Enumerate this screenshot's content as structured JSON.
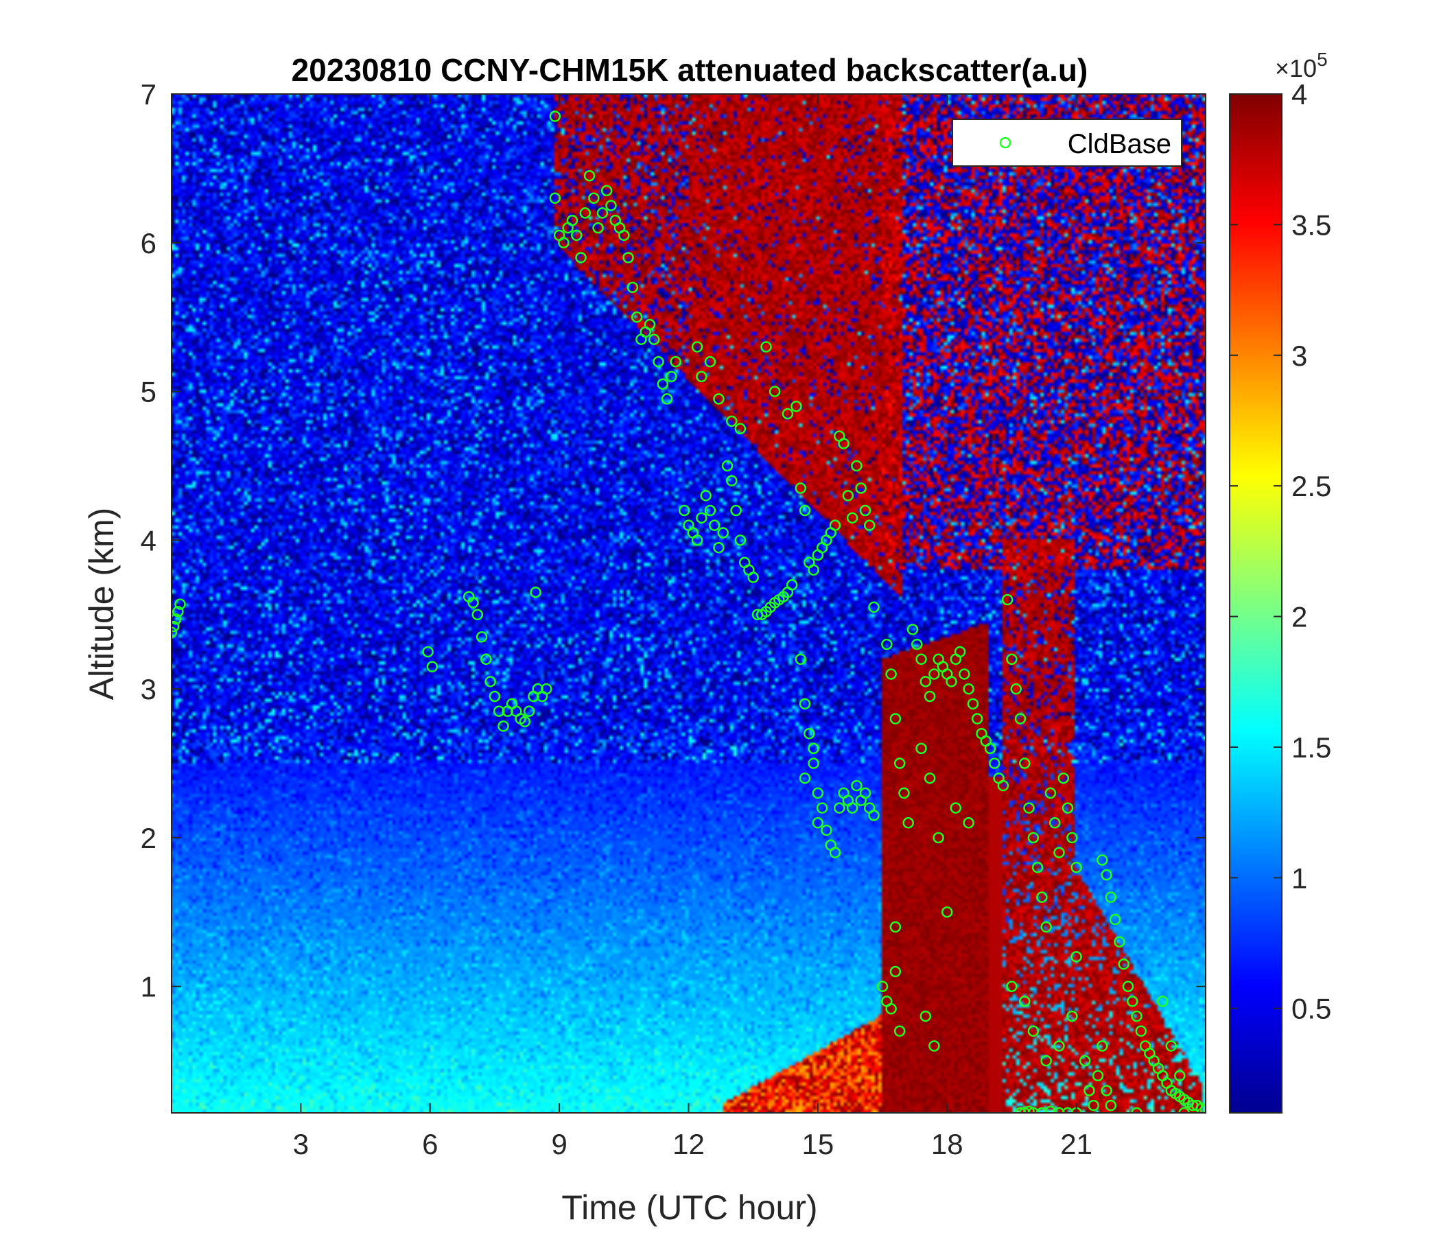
{
  "chart_data": {
    "type": "heatmap",
    "title": "20230810 CCNY-CHM15K attenuated backscatter(a.u)",
    "xlabel": "Time (UTC hour)",
    "ylabel": "Altitude (km)",
    "xlim": [
      0,
      24
    ],
    "ylim": [
      0.15,
      7
    ],
    "x_ticks": [
      3,
      6,
      9,
      12,
      15,
      18,
      21
    ],
    "x_tick_labels": [
      "3",
      "6",
      "9",
      "12",
      "15",
      "18",
      "21"
    ],
    "y_ticks": [
      1,
      2,
      3,
      4,
      5,
      6,
      7
    ],
    "y_tick_labels": [
      "1",
      "2",
      "3",
      "4",
      "5",
      "6",
      "7"
    ],
    "colorbar": {
      "colormap": "jet",
      "clim": [
        0.1,
        4
      ],
      "ticks": [
        0.5,
        1,
        1.5,
        2,
        2.5,
        3,
        3.5,
        4
      ],
      "tick_labels": [
        "0.5",
        "1",
        "1.5",
        "2",
        "2.5",
        "3",
        "3.5",
        "4"
      ],
      "multiplier_prefix": "×10",
      "multiplier_exponent": "5"
    },
    "legend": {
      "placement": "top-right",
      "entries": [
        "CldBase"
      ]
    },
    "series": [
      {
        "name": "CldBase",
        "marker": "circle-open",
        "color": "#22ff22",
        "points": [
          [
            0.0,
            3.38
          ],
          [
            0.05,
            3.42
          ],
          [
            0.1,
            3.47
          ],
          [
            0.15,
            3.52
          ],
          [
            0.2,
            3.57
          ],
          [
            5.95,
            3.25
          ],
          [
            6.05,
            3.15
          ],
          [
            6.9,
            3.62
          ],
          [
            7.0,
            3.58
          ],
          [
            7.1,
            3.5
          ],
          [
            7.2,
            3.35
          ],
          [
            7.3,
            3.2
          ],
          [
            7.4,
            3.05
          ],
          [
            7.5,
            2.95
          ],
          [
            7.6,
            2.85
          ],
          [
            7.7,
            2.75
          ],
          [
            7.8,
            2.85
          ],
          [
            7.9,
            2.9
          ],
          [
            8.0,
            2.85
          ],
          [
            8.1,
            2.8
          ],
          [
            8.2,
            2.78
          ],
          [
            8.3,
            2.85
          ],
          [
            8.4,
            2.95
          ],
          [
            8.5,
            3.0
          ],
          [
            8.6,
            2.95
          ],
          [
            8.7,
            3.0
          ],
          [
            8.45,
            3.65
          ],
          [
            8.9,
            6.85
          ],
          [
            8.9,
            6.3
          ],
          [
            9.0,
            6.05
          ],
          [
            9.1,
            6.0
          ],
          [
            9.2,
            6.1
          ],
          [
            9.3,
            6.15
          ],
          [
            9.4,
            6.05
          ],
          [
            9.5,
            5.9
          ],
          [
            9.6,
            6.2
          ],
          [
            9.7,
            6.45
          ],
          [
            9.8,
            6.3
          ],
          [
            9.9,
            6.1
          ],
          [
            10.0,
            6.2
          ],
          [
            10.1,
            6.35
          ],
          [
            10.2,
            6.25
          ],
          [
            10.3,
            6.15
          ],
          [
            10.4,
            6.1
          ],
          [
            10.5,
            6.05
          ],
          [
            10.6,
            5.9
          ],
          [
            10.7,
            5.7
          ],
          [
            10.8,
            5.5
          ],
          [
            10.9,
            5.35
          ],
          [
            11.0,
            5.4
          ],
          [
            11.1,
            5.45
          ],
          [
            11.2,
            5.35
          ],
          [
            11.3,
            5.2
          ],
          [
            11.4,
            5.05
          ],
          [
            11.5,
            4.95
          ],
          [
            11.6,
            5.1
          ],
          [
            11.7,
            5.2
          ],
          [
            12.2,
            5.3
          ],
          [
            12.3,
            5.1
          ],
          [
            12.5,
            5.2
          ],
          [
            12.7,
            4.95
          ],
          [
            13.0,
            4.8
          ],
          [
            13.2,
            4.75
          ],
          [
            11.9,
            4.2
          ],
          [
            12.0,
            4.1
          ],
          [
            12.1,
            4.05
          ],
          [
            12.2,
            4.0
          ],
          [
            12.3,
            4.15
          ],
          [
            12.4,
            4.3
          ],
          [
            12.5,
            4.2
          ],
          [
            12.6,
            4.1
          ],
          [
            12.7,
            3.95
          ],
          [
            12.8,
            4.05
          ],
          [
            12.9,
            4.5
          ],
          [
            13.0,
            4.4
          ],
          [
            13.1,
            4.2
          ],
          [
            13.2,
            4.0
          ],
          [
            13.3,
            3.85
          ],
          [
            13.4,
            3.8
          ],
          [
            13.5,
            3.75
          ],
          [
            13.6,
            3.5
          ],
          [
            13.7,
            3.5
          ],
          [
            13.8,
            3.52
          ],
          [
            13.9,
            3.55
          ],
          [
            14.0,
            3.58
          ],
          [
            14.1,
            3.6
          ],
          [
            14.2,
            3.62
          ],
          [
            14.3,
            3.65
          ],
          [
            14.4,
            3.7
          ],
          [
            14.5,
            4.9
          ],
          [
            14.6,
            4.35
          ],
          [
            14.7,
            4.2
          ],
          [
            14.8,
            3.85
          ],
          [
            14.9,
            3.8
          ],
          [
            15.0,
            3.9
          ],
          [
            15.1,
            3.95
          ],
          [
            15.2,
            4.0
          ],
          [
            15.3,
            4.05
          ],
          [
            15.4,
            4.1
          ],
          [
            15.5,
            4.7
          ],
          [
            15.6,
            4.65
          ],
          [
            15.7,
            4.3
          ],
          [
            15.8,
            4.15
          ],
          [
            15.9,
            4.5
          ],
          [
            16.0,
            4.35
          ],
          [
            16.1,
            4.2
          ],
          [
            16.2,
            4.1
          ],
          [
            16.3,
            3.55
          ],
          [
            13.8,
            5.3
          ],
          [
            14.0,
            5.0
          ],
          [
            14.3,
            4.85
          ],
          [
            14.6,
            3.2
          ],
          [
            14.7,
            2.9
          ],
          [
            14.8,
            2.7
          ],
          [
            14.9,
            2.5
          ],
          [
            15.0,
            2.3
          ],
          [
            15.1,
            2.2
          ],
          [
            15.2,
            2.05
          ],
          [
            15.3,
            1.95
          ],
          [
            15.4,
            1.9
          ],
          [
            14.7,
            2.4
          ],
          [
            14.9,
            2.6
          ],
          [
            15.0,
            2.1
          ],
          [
            15.5,
            2.2
          ],
          [
            15.6,
            2.3
          ],
          [
            15.7,
            2.25
          ],
          [
            15.8,
            2.2
          ],
          [
            15.9,
            2.35
          ],
          [
            16.0,
            2.25
          ],
          [
            16.1,
            2.3
          ],
          [
            16.2,
            2.2
          ],
          [
            16.3,
            2.15
          ],
          [
            16.5,
            1.0
          ],
          [
            16.6,
            0.9
          ],
          [
            16.7,
            0.85
          ],
          [
            16.8,
            1.1
          ],
          [
            16.9,
            0.7
          ],
          [
            16.6,
            3.3
          ],
          [
            16.7,
            3.1
          ],
          [
            16.8,
            2.8
          ],
          [
            16.9,
            2.5
          ],
          [
            17.0,
            2.3
          ],
          [
            17.1,
            2.1
          ],
          [
            16.8,
            1.4
          ],
          [
            17.2,
            3.4
          ],
          [
            17.3,
            3.3
          ],
          [
            17.4,
            3.2
          ],
          [
            17.5,
            3.05
          ],
          [
            17.6,
            2.95
          ],
          [
            17.7,
            3.1
          ],
          [
            17.8,
            3.2
          ],
          [
            17.9,
            3.15
          ],
          [
            18.0,
            3.1
          ],
          [
            18.1,
            3.05
          ],
          [
            18.2,
            3.2
          ],
          [
            18.3,
            3.25
          ],
          [
            18.4,
            3.1
          ],
          [
            18.5,
            3.0
          ],
          [
            18.6,
            2.9
          ],
          [
            18.7,
            2.8
          ],
          [
            18.8,
            2.7
          ],
          [
            18.9,
            2.65
          ],
          [
            19.0,
            2.6
          ],
          [
            19.1,
            2.5
          ],
          [
            19.2,
            2.4
          ],
          [
            19.3,
            2.35
          ],
          [
            17.4,
            2.6
          ],
          [
            17.6,
            2.4
          ],
          [
            17.8,
            2.0
          ],
          [
            18.0,
            1.5
          ],
          [
            17.5,
            0.8
          ],
          [
            17.7,
            0.6
          ],
          [
            18.2,
            2.2
          ],
          [
            18.5,
            2.1
          ],
          [
            19.4,
            3.6
          ],
          [
            19.5,
            3.2
          ],
          [
            19.6,
            3.0
          ],
          [
            19.7,
            2.8
          ],
          [
            19.8,
            2.5
          ],
          [
            19.9,
            2.2
          ],
          [
            20.0,
            2.0
          ],
          [
            20.1,
            1.8
          ],
          [
            20.2,
            1.6
          ],
          [
            20.3,
            1.4
          ],
          [
            20.4,
            2.3
          ],
          [
            20.5,
            2.1
          ],
          [
            20.6,
            1.9
          ],
          [
            20.7,
            2.4
          ],
          [
            20.8,
            2.2
          ],
          [
            20.9,
            2.0
          ],
          [
            21.0,
            1.8
          ],
          [
            19.7,
            0.15
          ],
          [
            19.8,
            0.15
          ],
          [
            19.9,
            0.16
          ],
          [
            20.0,
            0.15
          ],
          [
            20.2,
            0.15
          ],
          [
            20.4,
            0.16
          ],
          [
            20.6,
            0.15
          ],
          [
            20.8,
            0.15
          ],
          [
            21.0,
            0.15
          ],
          [
            19.5,
            1.0
          ],
          [
            19.8,
            0.9
          ],
          [
            20.0,
            0.7
          ],
          [
            20.3,
            0.5
          ],
          [
            20.6,
            0.6
          ],
          [
            20.9,
            0.8
          ],
          [
            21.0,
            1.2
          ],
          [
            21.2,
            0.5
          ],
          [
            21.3,
            0.3
          ],
          [
            21.4,
            0.2
          ],
          [
            21.5,
            0.4
          ],
          [
            21.6,
            0.6
          ],
          [
            21.7,
            0.3
          ],
          [
            21.8,
            0.2
          ],
          [
            21.6,
            1.85
          ],
          [
            21.7,
            1.75
          ],
          [
            21.8,
            1.6
          ],
          [
            21.9,
            1.45
          ],
          [
            22.0,
            1.3
          ],
          [
            22.1,
            1.15
          ],
          [
            22.2,
            1.0
          ],
          [
            22.3,
            0.9
          ],
          [
            22.4,
            0.8
          ],
          [
            22.5,
            0.7
          ],
          [
            22.6,
            0.6
          ],
          [
            22.7,
            0.55
          ],
          [
            22.8,
            0.5
          ],
          [
            22.9,
            0.45
          ],
          [
            23.0,
            0.4
          ],
          [
            23.1,
            0.35
          ],
          [
            23.2,
            0.3
          ],
          [
            23.3,
            0.28
          ],
          [
            23.4,
            0.26
          ],
          [
            23.5,
            0.24
          ],
          [
            23.6,
            0.22
          ],
          [
            23.7,
            0.2
          ],
          [
            23.8,
            0.2
          ],
          [
            23.9,
            0.18
          ],
          [
            24.0,
            0.17
          ],
          [
            23.0,
            0.9
          ],
          [
            23.2,
            0.6
          ],
          [
            23.4,
            0.4
          ],
          [
            22.4,
            0.15
          ],
          [
            23.5,
            0.15
          ]
        ]
      }
    ]
  }
}
